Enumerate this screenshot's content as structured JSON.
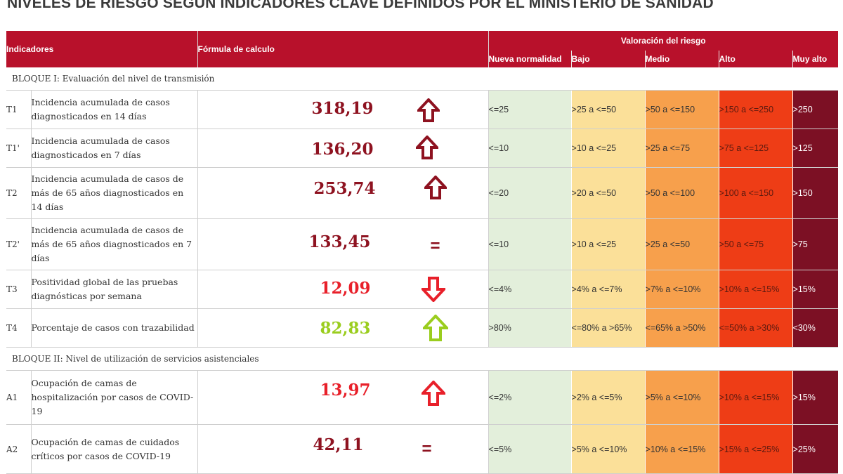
{
  "title": "NIVELES DE RIESGO SEGÚN INDICADORES CLAVE DEFINIDOS POR EL MINISTERIO DE SANIDAD",
  "colors": {
    "header": "#b8112b",
    "nueva_normalidad": "#e3efdb",
    "bajo": "#fbe099",
    "medio": "#f7a04c",
    "alto": "#ee3d16",
    "muy_alto": "#7c1024",
    "value_dark": "#8e1220",
    "value_red": "#e8202a",
    "value_green": "#9acd1e"
  },
  "header": {
    "indicadores": "Indicadores",
    "formula": "Fórmula de calculo",
    "valoracion": "Valoración del riesgo",
    "levels": [
      "Nueva normalidad",
      "Bajo",
      "Medio",
      "Alto",
      "Muy alto"
    ]
  },
  "bloque1": {
    "label": "BLOQUE I: Evaluación del nivel de transmisión",
    "rows": [
      {
        "code": "T1",
        "name": "Incidencia acumulada de casos diagnosticados en 14 días",
        "value": "318,19",
        "trend": "up",
        "ranges": [
          "<=25",
          ">25 a <=50",
          ">50 a <=150",
          ">150 a <=250",
          ">250"
        ]
      },
      {
        "code": "T1'",
        "name": "Incidencia acumulada de casos diagnosticados en 7 días",
        "value": "136,20",
        "trend": "up",
        "ranges": [
          "<=10",
          ">10 a <=25",
          ">25 a <=75",
          ">75 a <=125",
          ">125"
        ]
      },
      {
        "code": "T2",
        "name": "Incidencia acumulada de casos de más de 65 años diagnosticados en 14 días",
        "value": "253,74",
        "trend": "up",
        "ranges": [
          "<=20",
          ">20 a <=50",
          ">50 a <=100",
          ">100 a <=150",
          ">150"
        ]
      },
      {
        "code": "T2'",
        "name": "Incidencia acumulada de casos de más de 65 años diagnosticados en 7 días",
        "value": "133,45",
        "trend": "equal",
        "ranges": [
          "<=10",
          ">10 a <=25",
          ">25 a <=50",
          ">50 a <=75",
          ">75"
        ]
      },
      {
        "code": "T3",
        "name": "Positividad global de las pruebas diagnósticas por semana",
        "value": "12,09",
        "trend": "down",
        "ranges": [
          "<=4%",
          ">4% a <=7%",
          ">7% a <=10%",
          ">10% a <=15%",
          ">15%"
        ]
      },
      {
        "code": "T4",
        "name": "Porcentaje de casos con trazabilidad",
        "value": "82,83",
        "trend": "up",
        "ranges": [
          ">80%",
          "<=80% a >65%",
          "<=65% a >50%",
          "<=50% a >30%",
          "<30%"
        ]
      }
    ]
  },
  "bloque2": {
    "label": "BLOQUE II: Nivel de utilización de servicios asistenciales",
    "rows": [
      {
        "code": "A1",
        "name": "Ocupación de camas de hospitalización por casos de COVID-19",
        "value": "13,97",
        "trend": "up",
        "ranges": [
          "<=2%",
          ">2% a <=5%",
          ">5% a <=10%",
          ">10% a <=15%",
          ">15%"
        ]
      },
      {
        "code": "A2",
        "name": "Ocupación de camas de cuidados críticos por casos de COVID-19",
        "value": "42,11",
        "trend": "equal",
        "ranges": [
          "<=5%",
          ">5% a <=10%",
          ">10% a <=15%",
          ">15% a <=25%",
          ">25%"
        ]
      }
    ]
  }
}
